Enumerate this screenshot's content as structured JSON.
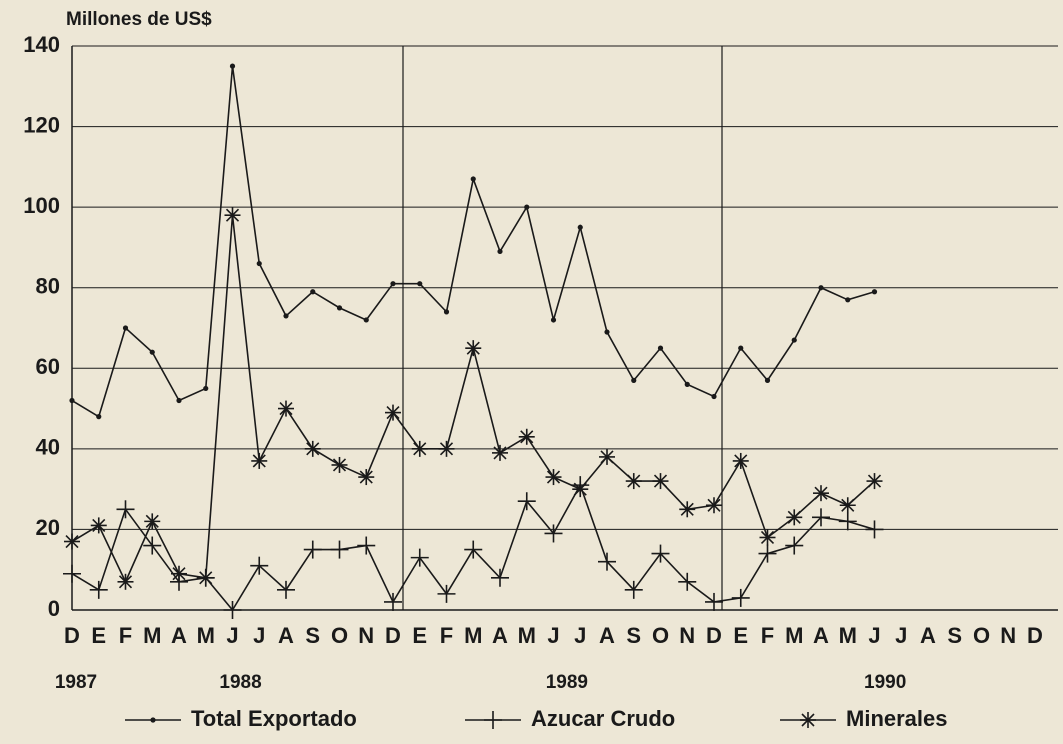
{
  "chart_data": {
    "type": "line",
    "ylabel": "Millones de US$",
    "categories": [
      "D",
      "E",
      "F",
      "M",
      "A",
      "M",
      "J",
      "J",
      "A",
      "S",
      "O",
      "N",
      "D",
      "E",
      "F",
      "M",
      "A",
      "M",
      "J",
      "J",
      "A",
      "S",
      "O",
      "N",
      "D",
      "E",
      "F",
      "M",
      "A",
      "M",
      "J",
      "J",
      "A",
      "S",
      "O",
      "N",
      "D"
    ],
    "years": [
      "1987",
      "1988",
      "1989",
      "1990"
    ],
    "ylim": [
      0,
      140
    ],
    "yticks": [
      0,
      20,
      40,
      60,
      80,
      100,
      120,
      140
    ],
    "grid": true,
    "series": [
      {
        "name": "Total Exportado",
        "color": "#1a1a1a",
        "marker": "dot",
        "values": [
          52,
          48,
          70,
          64,
          52,
          55,
          135,
          86,
          73,
          79,
          75,
          72,
          81,
          81,
          74,
          107,
          89,
          100,
          72,
          95,
          69,
          57,
          65,
          56,
          53,
          65,
          57,
          67,
          80,
          77,
          79,
          null,
          null,
          null,
          null,
          null,
          null
        ]
      },
      {
        "name": "Azucar Crudo",
        "color": "#1a1a1a",
        "marker": "plus",
        "values": [
          9,
          5,
          25,
          16,
          7,
          8,
          0,
          11,
          5,
          15,
          15,
          16,
          2,
          13,
          4,
          15,
          8,
          27,
          19,
          31,
          12,
          5,
          14,
          7,
          2,
          3,
          14,
          16,
          23,
          22,
          20,
          null,
          null,
          null,
          null,
          null,
          null
        ]
      },
      {
        "name": "Minerales",
        "color": "#1a1a1a",
        "marker": "asterisk",
        "values": [
          17,
          21,
          7,
          22,
          9,
          8,
          98,
          37,
          50,
          40,
          36,
          33,
          49,
          40,
          40,
          65,
          39,
          43,
          33,
          30,
          38,
          32,
          32,
          25,
          26,
          37,
          18,
          23,
          29,
          26,
          32,
          null,
          null,
          null,
          null,
          null,
          null
        ]
      }
    ]
  }
}
